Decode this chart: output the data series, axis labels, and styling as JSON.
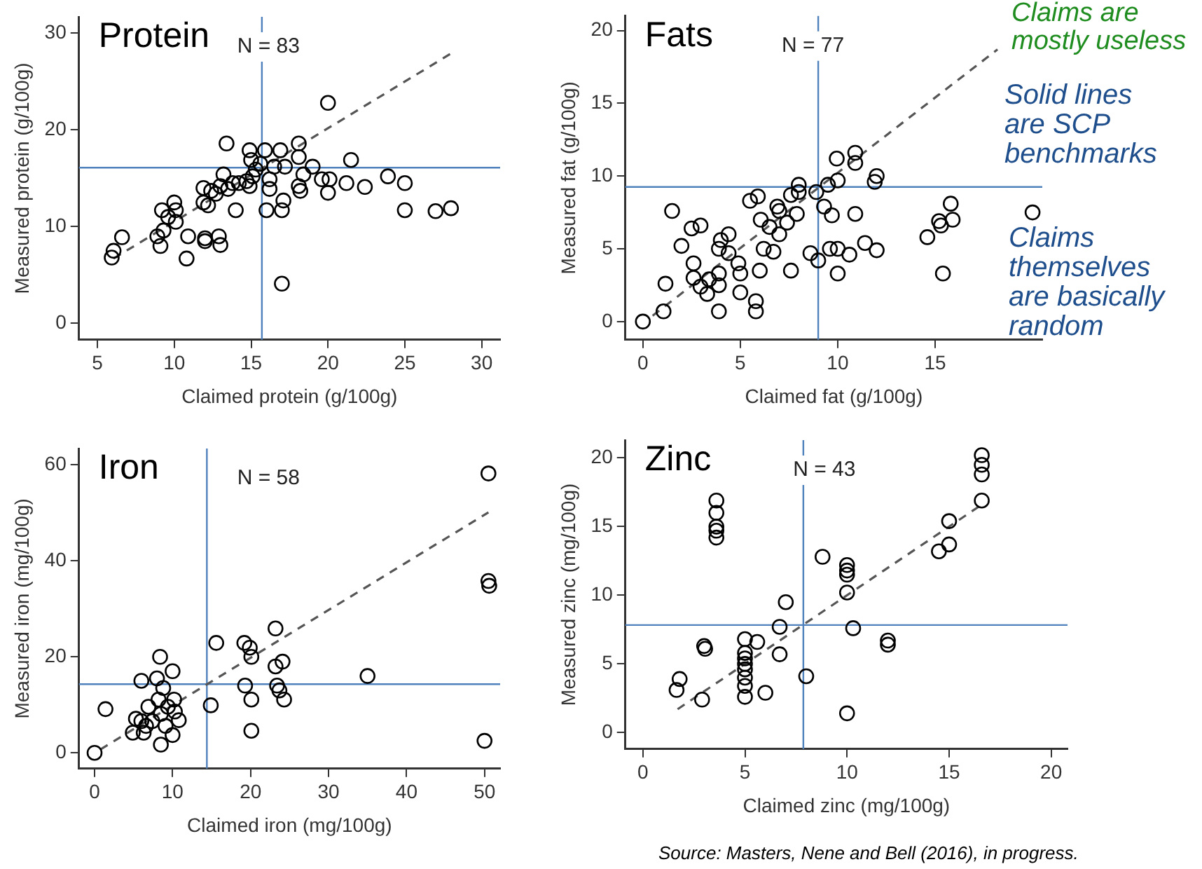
{
  "chart_data": [
    {
      "type": "scatter",
      "title": "Protein",
      "annotations": [
        "N = 83"
      ],
      "xlabel": "Claimed protein (g/100g)",
      "ylabel": "Measured protein (g/100g)",
      "xlim": [
        3.8,
        31.2
      ],
      "ylim": [
        -1.7,
        31.7
      ],
      "xticks": [
        5,
        10,
        15,
        20,
        25,
        30
      ],
      "yticks": [
        0,
        10,
        20,
        30
      ],
      "grid": false,
      "ref_lines": [
        {
          "axis": "x",
          "value": 15.7,
          "color": "#4f81bd"
        },
        {
          "axis": "y",
          "value": 16.1,
          "color": "#4f81bd"
        }
      ],
      "series": [
        {
          "type": "scatter",
          "color": "#000000",
          "marker": "circle",
          "x": [
            5.93,
            6.05,
            6.6,
            8.9,
            9.1,
            9.3,
            9.2,
            9.6,
            10.0,
            10.1,
            10.1,
            10.9,
            10.8,
            11.9,
            11.9,
            12.0,
            12.0,
            12.2,
            12.4,
            12.7,
            12.9,
            13.0,
            13.0,
            13.2,
            13.4,
            13.5,
            13.8,
            14.0,
            14.2,
            14.7,
            14.9,
            15.0,
            14.9,
            15.1,
            15.3,
            15.6,
            15.9,
            16.0,
            16.2,
            16.2,
            16.5,
            16.9,
            17.0,
            17.1,
            17.0,
            17.2,
            18.1,
            18.1,
            18.1,
            18.2,
            18.4,
            19.0,
            19.6,
            20.0,
            20.0,
            20.1,
            21.2,
            21.5,
            22.4,
            23.9,
            25.0,
            25.0,
            27.0,
            28.0
          ],
          "values": [
            6.8,
            7.5,
            8.9,
            9.0,
            8.0,
            9.6,
            11.7,
            11.0,
            12.5,
            11.7,
            10.5,
            9.0,
            6.7,
            14.0,
            12.5,
            8.8,
            8.5,
            12.2,
            13.7,
            13.4,
            9.0,
            8.1,
            14.2,
            15.4,
            18.6,
            13.9,
            14.5,
            11.7,
            14.5,
            14.7,
            17.9,
            16.9,
            14.2,
            15.2,
            15.9,
            16.5,
            17.9,
            11.7,
            14.9,
            13.9,
            16.2,
            17.9,
            11.7,
            12.7,
            4.1,
            16.2,
            18.6,
            17.2,
            14.2,
            13.7,
            15.4,
            16.2,
            14.9,
            22.8,
            13.5,
            14.9,
            14.5,
            16.9,
            14.1,
            15.2,
            14.5,
            11.7,
            11.6,
            11.9
          ]
        },
        {
          "type": "line",
          "color": "#555555",
          "marker": "none",
          "line_style": "dashed",
          "x": [
            6.05,
            28.1
          ],
          "values": [
            6.7,
            28.0
          ]
        }
      ]
    },
    {
      "type": "scatter",
      "title": "Fats",
      "annotations": [
        "N = 77",
        "Claims are mostly useless",
        "Solid lines are SCP benchmarks",
        "Claims themselves are basically random"
      ],
      "xlabel": "Claimed fat (g/100g)",
      "ylabel": "Measured fat (g/100g)",
      "xlim": [
        -0.9,
        20.5
      ],
      "ylim": [
        -1.25,
        21
      ],
      "xticks": [
        0,
        5,
        10,
        15
      ],
      "yticks": [
        0,
        5,
        10,
        15,
        20
      ],
      "grid": false,
      "ref_lines": [
        {
          "axis": "x",
          "value": 9.0,
          "color": "#4f81bd"
        },
        {
          "axis": "y",
          "value": 9.25,
          "color": "#4f81bd"
        }
      ],
      "series": [
        {
          "type": "scatter",
          "color": "#000000",
          "marker": "circle",
          "x": [
            0,
            1.06,
            1.16,
            1.5,
            1.98,
            2.5,
            2.96,
            2.6,
            2.6,
            2.96,
            3.3,
            3.4,
            3.9,
            3.9,
            4.0,
            3.9,
            3.9,
            4.4,
            4.4,
            4.9,
            5.0,
            5.0,
            5.5,
            5.9,
            6.0,
            5.8,
            5.8,
            6.05,
            6.2,
            6.5,
            6.7,
            6.9,
            7.0,
            7.0,
            7.4,
            7.6,
            7.6,
            7.9,
            8.0,
            8.0,
            8.6,
            8.9,
            9.0,
            9.3,
            9.5,
            9.7,
            9.6,
            9.95,
            10.0,
            10.0,
            10.0,
            10.6,
            10.9,
            10.9,
            10.9,
            11.4,
            11.9,
            12.0,
            12.0,
            14.6,
            15.2,
            15.3,
            15.4,
            15.8,
            15.9,
            20.0
          ],
          "values": [
            0,
            0.7,
            2.6,
            7.6,
            5.2,
            6.4,
            6.6,
            4.0,
            3.0,
            2.4,
            1.9,
            2.9,
            3.3,
            2.5,
            5.6,
            5.0,
            0.7,
            6.0,
            4.7,
            4.0,
            3.3,
            2.0,
            8.3,
            8.6,
            3.5,
            1.4,
            0.7,
            7.0,
            5.0,
            6.5,
            4.8,
            7.9,
            7.6,
            6.0,
            6.8,
            3.5,
            8.7,
            7.4,
            9.4,
            8.9,
            4.7,
            8.9,
            4.2,
            7.9,
            9.4,
            7.3,
            5.0,
            11.2,
            9.7,
            5.0,
            3.3,
            4.6,
            11.6,
            10.9,
            7.4,
            5.4,
            9.6,
            10.0,
            4.9,
            5.8,
            6.9,
            6.6,
            3.3,
            8.1,
            7.0,
            7.5
          ]
        },
        {
          "type": "line",
          "color": "#555555",
          "marker": "none",
          "line_style": "dashed",
          "x": [
            0.5,
            18.2
          ],
          "values": [
            0.4,
            18.7
          ]
        }
      ]
    },
    {
      "type": "scatter",
      "title": "Iron",
      "annotations": [
        "N = 58"
      ],
      "xlabel": "Claimed iron (mg/100g)",
      "ylabel": "Measured iron (mg/100g)",
      "xlim": [
        -2,
        52
      ],
      "ylim": [
        -3.3,
        63.4
      ],
      "xticks": [
        0,
        10,
        20,
        30,
        40,
        50
      ],
      "yticks": [
        0,
        20,
        40,
        60
      ],
      "grid": false,
      "ref_lines": [
        {
          "axis": "x",
          "value": 14.4,
          "color": "#4f81bd"
        },
        {
          "axis": "y",
          "value": 14.3,
          "color": "#4f81bd"
        }
      ],
      "series": [
        {
          "type": "scatter",
          "color": "#000000",
          "marker": "circle",
          "x": [
            0,
            1.4,
            4.9,
            5.3,
            6.0,
            6.0,
            6.3,
            6.6,
            6.9,
            7.4,
            8.0,
            8.2,
            8.4,
            8.5,
            8.5,
            8.8,
            9.1,
            9.4,
            10.0,
            10.0,
            10.2,
            10.3,
            10.8,
            14.9,
            15.6,
            19.2,
            19.3,
            19.9,
            20.1,
            20.1,
            20.1,
            23.2,
            23.2,
            23.4,
            23.7,
            24.1,
            24.3,
            35.0,
            50.5,
            50.5,
            50.6,
            50.0
          ],
          "values": [
            0,
            9.1,
            4.2,
            7.1,
            6.6,
            15.0,
            4.2,
            5.6,
            9.6,
            6.6,
            15.5,
            11.1,
            20.0,
            1.7,
            8.1,
            13.5,
            5.6,
            9.6,
            17.0,
            3.7,
            11.1,
            8.6,
            6.8,
            9.9,
            22.9,
            22.9,
            14.0,
            21.9,
            20.0,
            11.1,
            4.6,
            25.9,
            18.0,
            14.0,
            13.0,
            19.0,
            11.1,
            16.0,
            58.2,
            35.8,
            34.8,
            2.5
          ]
        },
        {
          "type": "line",
          "color": "#555555",
          "marker": "none",
          "line_style": "dashed",
          "x": [
            0.75,
            50.5
          ],
          "values": [
            0.7,
            50.1
          ]
        }
      ]
    },
    {
      "type": "scatter",
      "title": "Zinc",
      "annotations": [
        "N = 43",
        "Source:  Masters, Nene and Bell (2016), in progress."
      ],
      "xlabel": "Claimed zinc (mg/100g)",
      "ylabel": "Measured zinc (mg/100g)",
      "xlim": [
        -0.86,
        20.8
      ],
      "ylim": [
        -1.2,
        21.3
      ],
      "xticks": [
        0,
        5,
        10,
        15,
        20
      ],
      "yticks": [
        0,
        5,
        10,
        15,
        20
      ],
      "grid": false,
      "ref_lines": [
        {
          "axis": "x",
          "value": 7.86,
          "color": "#4f81bd"
        },
        {
          "axis": "y",
          "value": 7.83,
          "color": "#4f81bd"
        }
      ],
      "series": [
        {
          "type": "scatter",
          "color": "#000000",
          "marker": "circle",
          "x": [
            1.65,
            1.8,
            2.9,
            3.0,
            3.05,
            3.6,
            3.6,
            3.6,
            3.6,
            3.6,
            5.0,
            5.0,
            5.0,
            5.0,
            5.0,
            5.0,
            5.0,
            5.0,
            5.6,
            6.0,
            6.7,
            6.7,
            7.0,
            8.0,
            8.8,
            10.0,
            10.0,
            10.0,
            10.0,
            10.0,
            10.3,
            12.0,
            12.0,
            14.5,
            15.0,
            15.0,
            16.6,
            16.6,
            16.6,
            16.6
          ],
          "values": [
            3.1,
            3.9,
            2.4,
            6.3,
            6.1,
            16.9,
            16.0,
            15.0,
            14.7,
            14.2,
            6.8,
            5.8,
            5.4,
            5.0,
            4.6,
            4.0,
            3.4,
            2.6,
            6.6,
            2.9,
            5.7,
            7.7,
            9.5,
            4.1,
            12.8,
            12.2,
            11.8,
            11.5,
            10.2,
            1.4,
            7.6,
            6.7,
            6.4,
            13.2,
            13.7,
            15.4,
            20.2,
            19.5,
            18.8,
            16.9
          ]
        },
        {
          "type": "line",
          "color": "#555555",
          "marker": "none",
          "line_style": "dashed",
          "x": [
            1.7,
            16.6
          ],
          "values": [
            1.7,
            16.6
          ]
        }
      ]
    }
  ]
}
